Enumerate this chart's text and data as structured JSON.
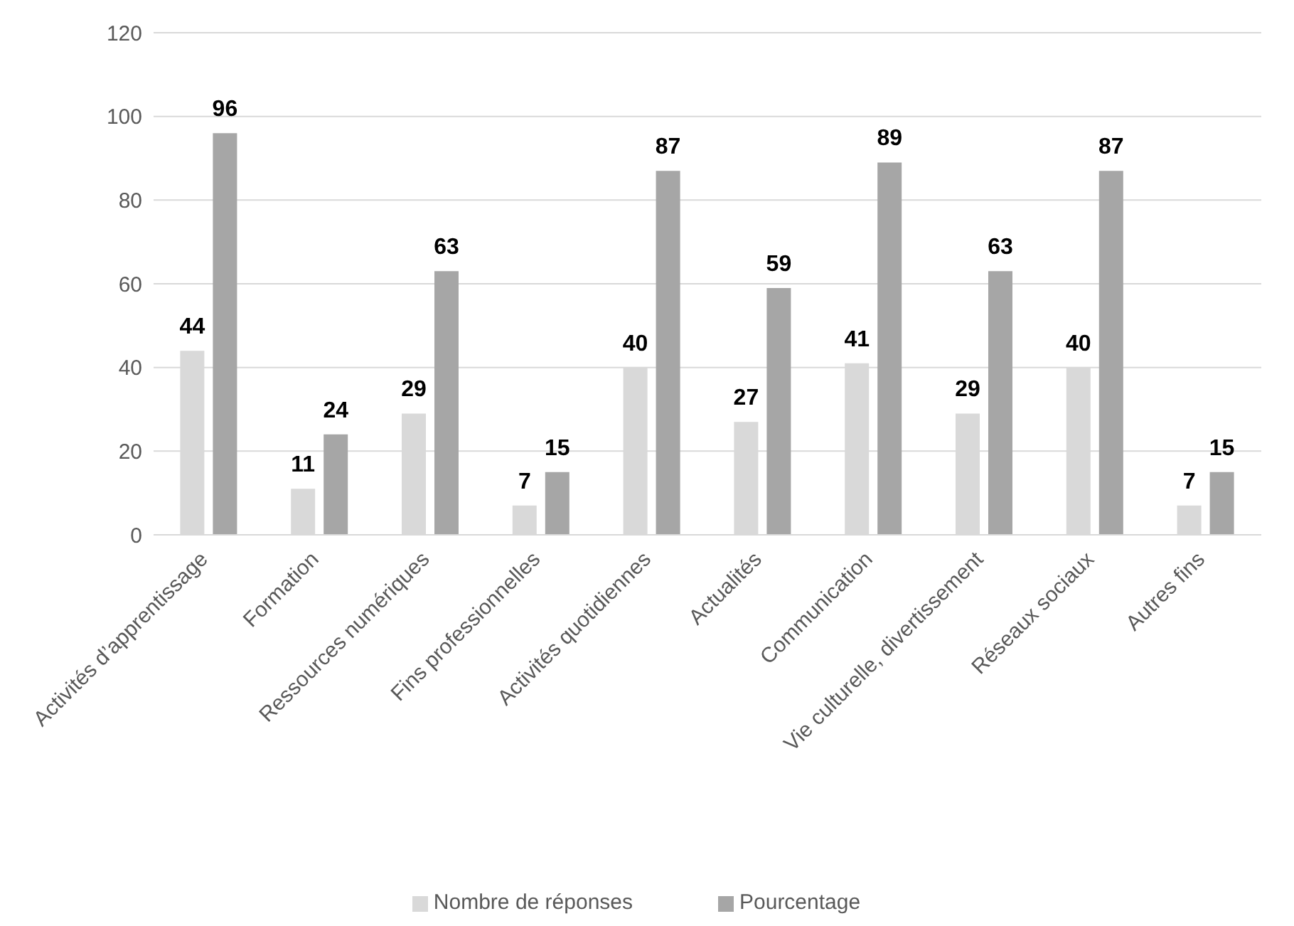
{
  "chart_data": {
    "type": "bar",
    "categories": [
      "Activités d’apprentissage",
      "Formation",
      "Ressources numériques",
      "Fins professionnelles",
      "Activités quotidiennes",
      "Actualités",
      "Communication",
      "Vie culturelle, divertissement",
      "Réseaux sociaux",
      "Autres fins"
    ],
    "series": [
      {
        "name": "Nombre de réponses",
        "color": "#d9d9d9",
        "values": [
          44,
          11,
          29,
          7,
          40,
          27,
          41,
          29,
          40,
          7
        ]
      },
      {
        "name": "Pourcentage",
        "color": "#a6a6a6",
        "values": [
          96,
          24,
          63,
          15,
          87,
          59,
          89,
          63,
          87,
          15
        ]
      }
    ],
    "ylim": [
      0,
      120
    ],
    "yticks": [
      0,
      20,
      40,
      60,
      80,
      100,
      120
    ],
    "grid": "y",
    "legend": "bottom",
    "data_labels": true
  }
}
